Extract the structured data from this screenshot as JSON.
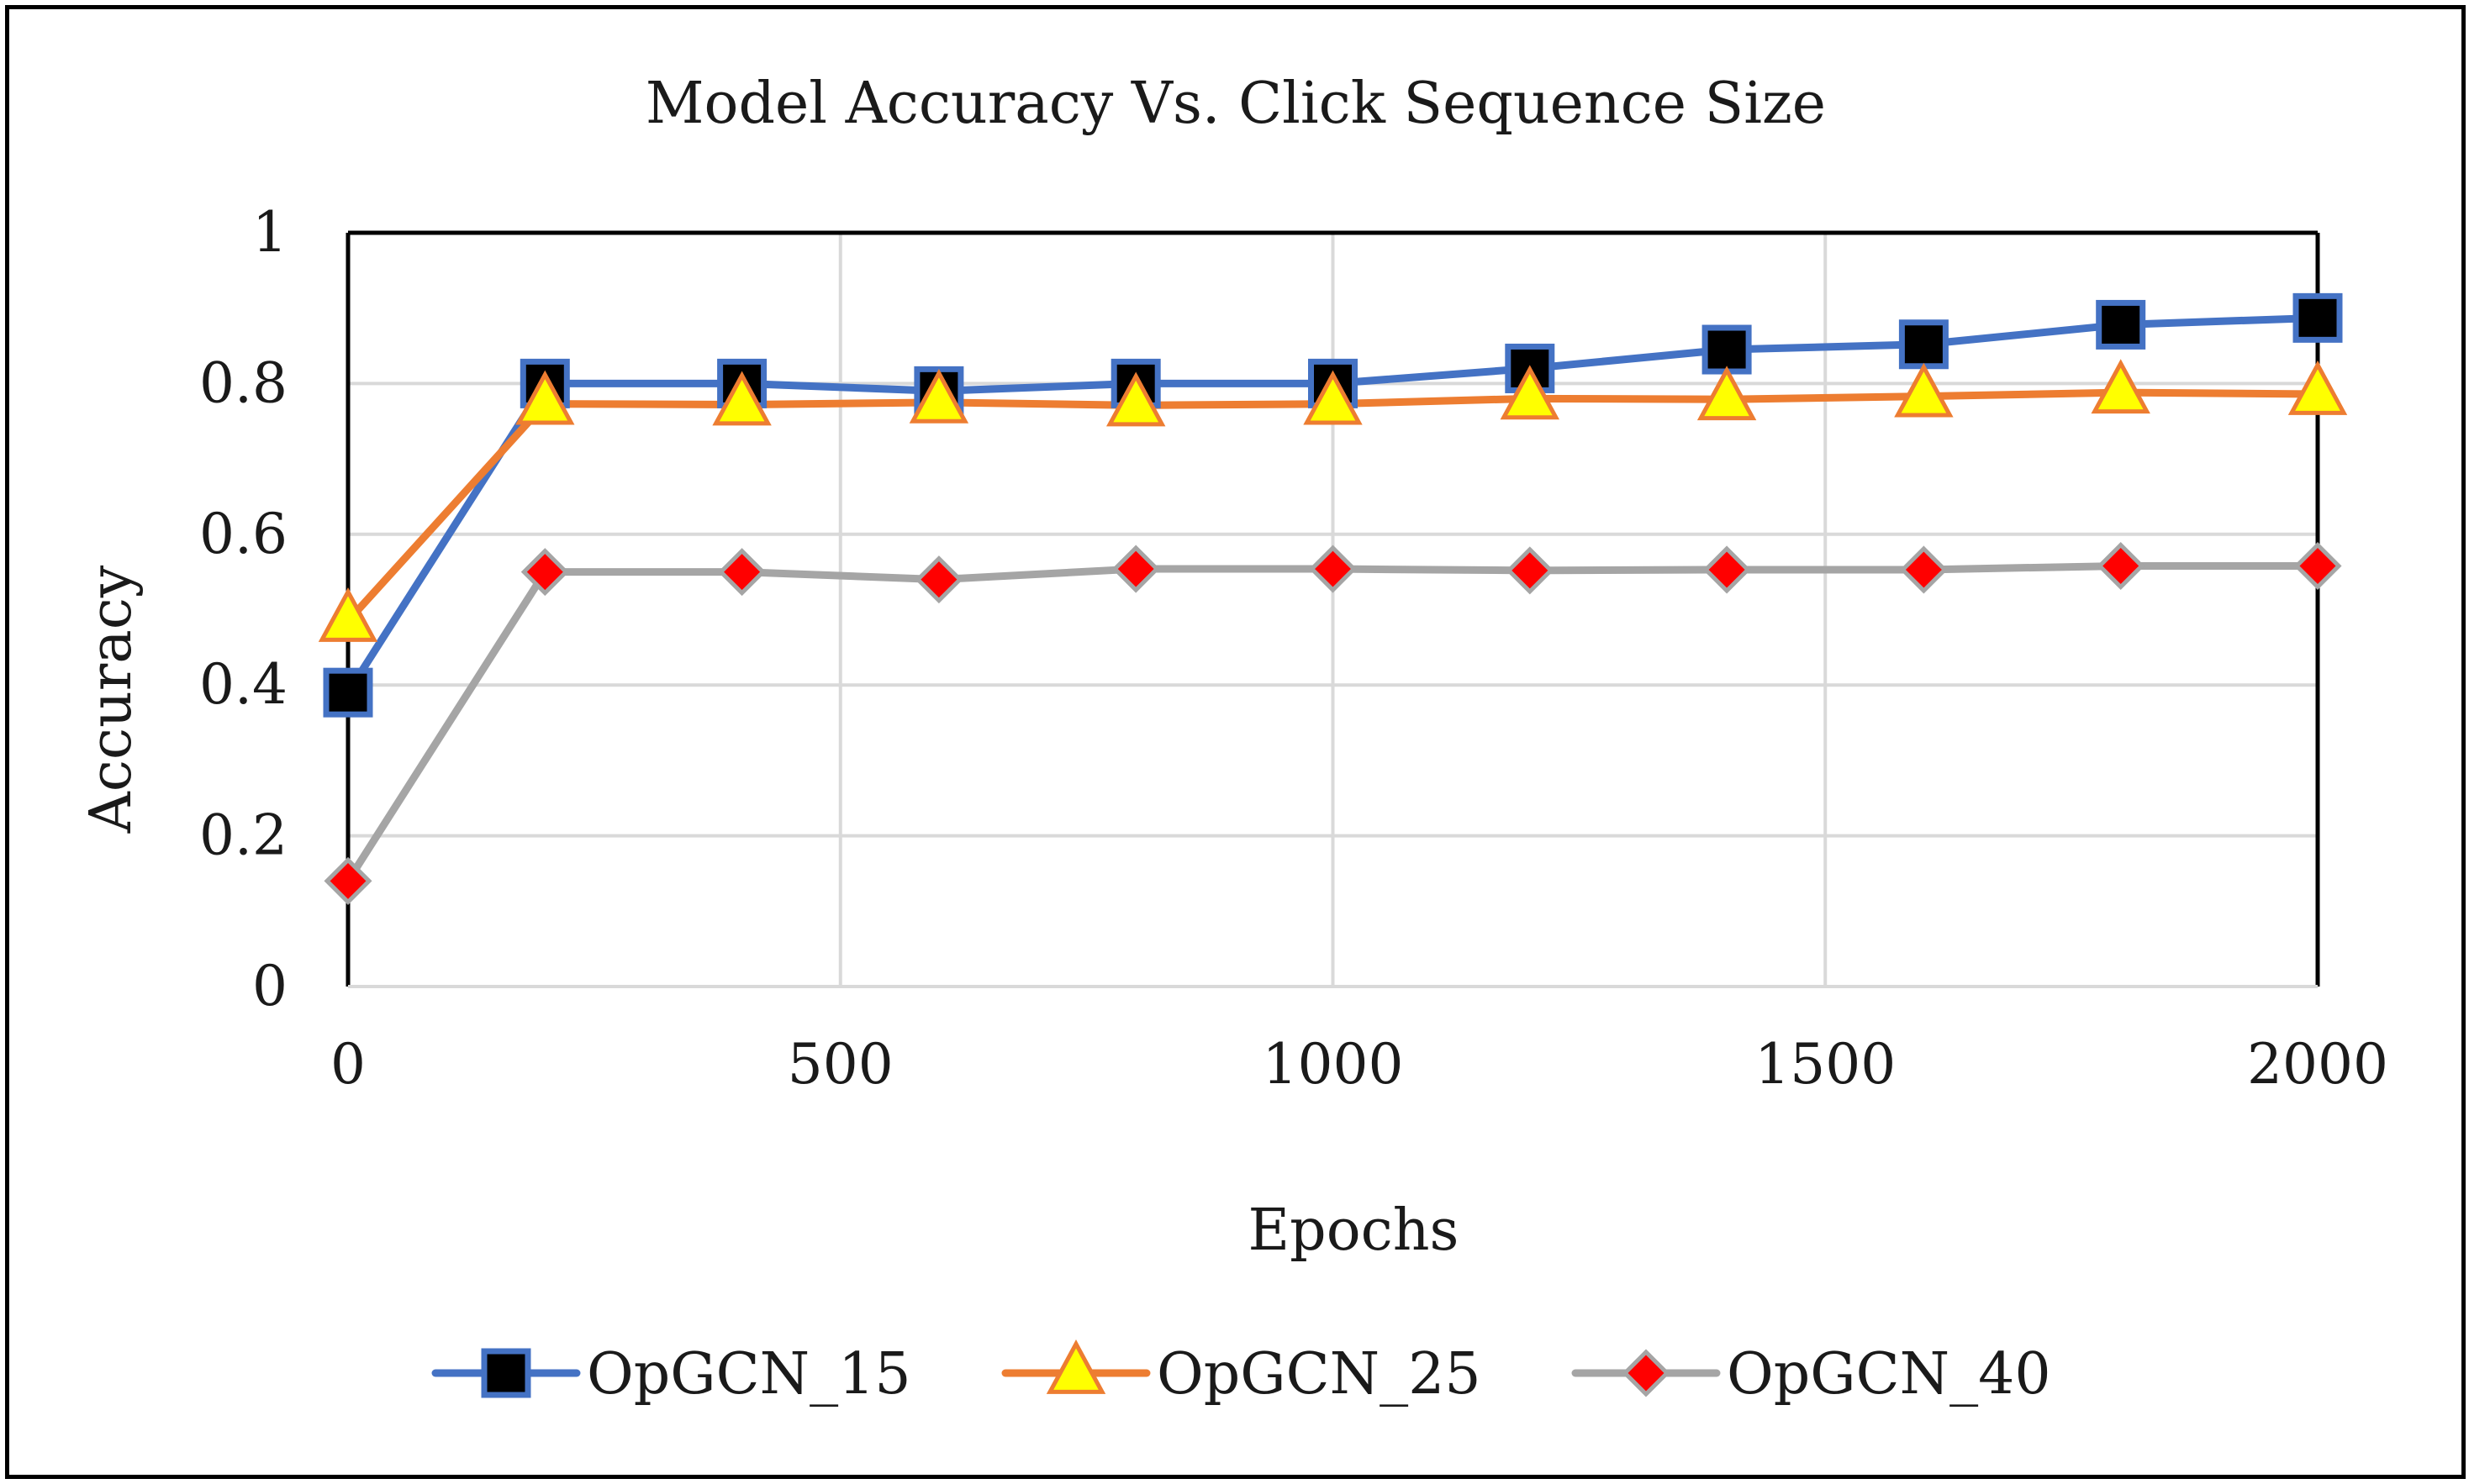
{
  "chart_data": {
    "type": "line",
    "title": "Model Accuracy Vs. Click Sequence Size",
    "xlabel": "Epochs",
    "ylabel": "Accuracy",
    "xlim": [
      0,
      2000
    ],
    "ylim": [
      0,
      1
    ],
    "grid": true,
    "legend_position": "bottom",
    "x_ticks": [
      "0",
      "500",
      "1000",
      "1500",
      "2000"
    ],
    "y_ticks": [
      "0",
      "0.2",
      "0.4",
      "0.6",
      "0.8",
      "1"
    ],
    "x": [
      0,
      200,
      400,
      600,
      800,
      1000,
      1200,
      1400,
      1600,
      1800,
      2000
    ],
    "series": [
      {
        "name": "OpGCN_15",
        "values": [
          0.39,
          0.8,
          0.8,
          0.79,
          0.8,
          0.8,
          0.82,
          0.845,
          0.852,
          0.878,
          0.887
        ],
        "line_color": "#4472C4",
        "marker": "square",
        "marker_fill": "#000000",
        "marker_stroke": "#4472C4"
      },
      {
        "name": "OpGCN_25",
        "values": [
          0.485,
          0.773,
          0.772,
          0.775,
          0.771,
          0.773,
          0.78,
          0.779,
          0.783,
          0.788,
          0.786
        ],
        "line_color": "#ED7D31",
        "marker": "triangle",
        "marker_fill": "#FFFF00",
        "marker_stroke": "#ED7D31"
      },
      {
        "name": "OpGCN_40",
        "values": [
          0.14,
          0.55,
          0.55,
          0.54,
          0.554,
          0.554,
          0.552,
          0.553,
          0.553,
          0.558,
          0.558
        ],
        "line_color": "#A5A5A5",
        "marker": "diamond",
        "marker_fill": "#FF0000",
        "marker_stroke": "#A5A5A5"
      }
    ]
  }
}
